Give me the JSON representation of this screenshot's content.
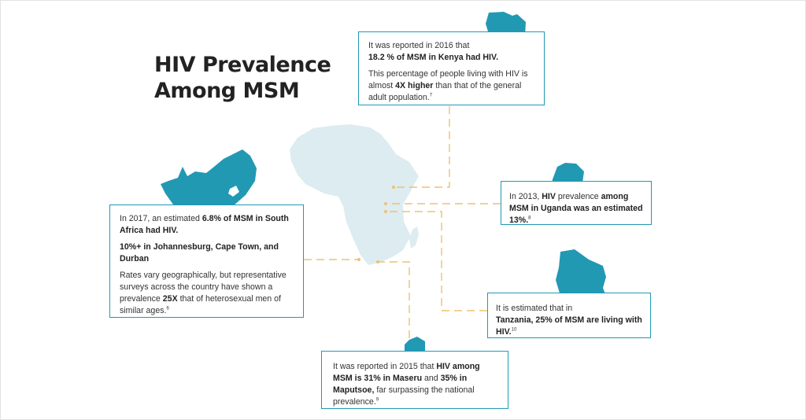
{
  "title": {
    "line1": "HIV Prevalence",
    "line2": "Among MSM"
  },
  "colors": {
    "accent": "#2199b3",
    "africa": "#dcecf1",
    "connector": "#f0c070",
    "title": "#222222"
  },
  "callouts": {
    "kenya": {
      "t1": "It was reported in 2016 that ",
      "t2": "18.2 % of MSM in Kenya had HIV.",
      "t3": "This percentage of people living with HIV is almost ",
      "t4": "4X higher",
      "t5": " than that of the general adult population.",
      "ref": "7"
    },
    "south_africa": {
      "t1": "In 2017, an estimated ",
      "t2": "6.8% of MSM in South Africa had HIV.",
      "t3": "10%+ in Johannesburg, Cape Town, and Durban",
      "t4": "Rates vary geographically, but representative surveys across the country have shown a prevalence ",
      "t5": "25X",
      "t6": " that of heterosexual men of similar ages.",
      "ref": "6"
    },
    "uganda": {
      "t1": "In 2013, ",
      "t2": "HIV",
      "t3": " prevalence ",
      "t4": "among MSM in Uganda was an estimated 13%.",
      "ref": "8"
    },
    "tanzania": {
      "t1": "It is estimated that in ",
      "t2": "Tanzania, 25% of MSM are living with HIV.",
      "ref": "10"
    },
    "lesotho": {
      "t1": "It was reported in 2015 that  ",
      "t2": "HIV among MSM is 31% in Maseru",
      "t3": " and ",
      "t4": "35% in Maputsoe,",
      "t5": " far surpassing the national prevalence.",
      "ref": "9"
    }
  }
}
